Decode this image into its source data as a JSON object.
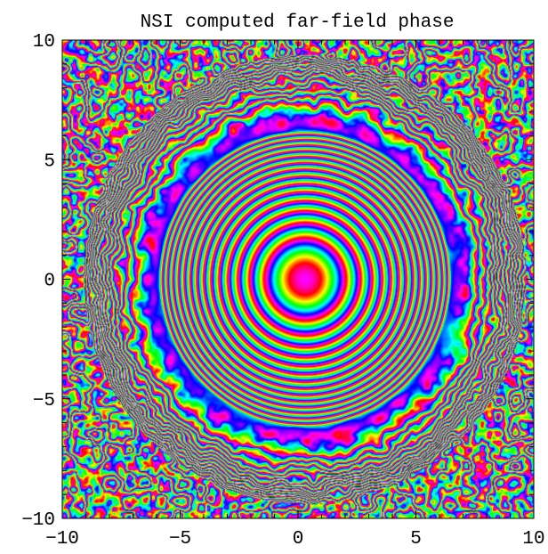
{
  "chart_data": {
    "type": "heatmap",
    "title": "NSI computed far-field phase",
    "xlabel": "",
    "ylabel": "",
    "xlim": [
      -10,
      10
    ],
    "ylim": [
      -10,
      10
    ],
    "x_ticks": [
      -10,
      -5,
      0,
      5,
      10
    ],
    "y_ticks": [
      -10,
      -5,
      0,
      5,
      10
    ],
    "x_tick_labels": [
      "−10",
      "−5",
      "0",
      "5",
      "10"
    ],
    "y_tick_labels": [
      "−10",
      "−5",
      "0",
      "5",
      "10"
    ],
    "minor_ticks_per_major": 4,
    "color_scale": "cyclic hue (phase)",
    "pattern": {
      "description_free": false,
      "center": [
        0.3,
        0.0
      ],
      "ring_spacing": 0.62,
      "coherent_radius": 8.0,
      "noise_outside": true
    },
    "grid": false,
    "legend": "none"
  }
}
